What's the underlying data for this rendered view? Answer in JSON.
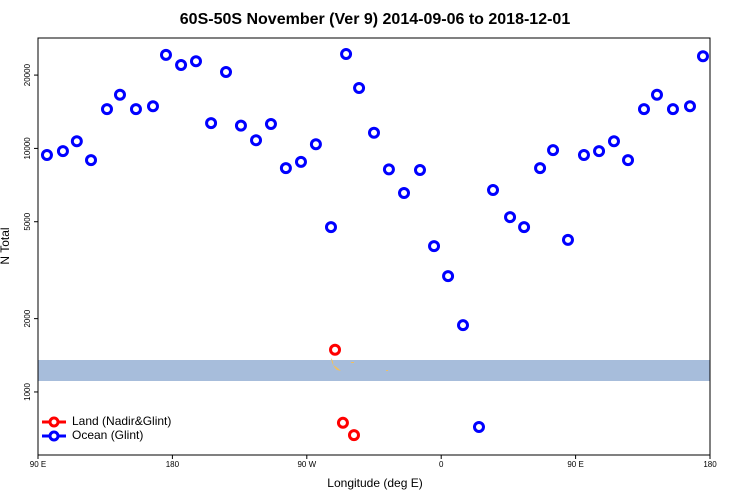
{
  "chart_data": {
    "type": "scatter",
    "title": "60S-50S November (Ver 9)   2014-09-06 to 2018-12-01",
    "xlabel": "Longitude (deg E)",
    "ylabel": "N Total",
    "log_y": true,
    "legend": "bottom-left",
    "xlim": [
      90,
      540
    ],
    "ylim": [
      551,
      28400
    ],
    "xticks": [
      {
        "value": 90,
        "label": "90 E"
      },
      180,
      {
        "value": 270,
        "label": "90 W"
      },
      {
        "value": 360,
        "label": "0"
      },
      {
        "value": 450,
        "label": "90 E"
      },
      {
        "value": 540,
        "label": "180"
      }
    ],
    "yticks": [
      1000,
      2000,
      5000,
      10000,
      20000
    ],
    "series": [
      {
        "name": "Land (Nadir&Glint)",
        "color": "#ff0000",
        "x": [
          288.9,
          294.2,
          301.6
        ],
        "values": [
          1490,
          747,
          665
        ]
      },
      {
        "name": "Ocean (Glint)",
        "color": "#0000ff",
        "x": [
          96,
          106.7,
          116,
          125.5,
          136.2,
          144.9,
          155.6,
          167,
          175.7,
          185.8,
          195.8,
          205.9,
          215.9,
          225.9,
          236,
          246,
          256,
          266.1,
          276.1,
          286.2,
          296.3,
          305,
          315,
          325,
          335.1,
          345.8,
          355.2,
          364.6,
          374.6,
          385.3,
          394.7,
          406.1,
          415.5,
          426.2,
          434.9,
          444.9,
          455.6,
          465.7,
          475.7,
          485.1,
          495.8,
          504.5,
          515.2,
          526.6,
          535.3
        ],
        "values": [
          9400,
          9750,
          10700,
          8950,
          14500,
          16600,
          14500,
          14900,
          24200,
          22000,
          22800,
          12700,
          20600,
          12400,
          10800,
          12600,
          8300,
          8800,
          10400,
          4750,
          24400,
          17700,
          11600,
          8200,
          6560,
          8150,
          3970,
          2990,
          1880,
          718,
          6750,
          5220,
          4750,
          8300,
          9840,
          4210,
          9400,
          9750,
          10700,
          8950,
          14500,
          16600,
          14500,
          14900,
          23900
        ]
      }
    ]
  }
}
